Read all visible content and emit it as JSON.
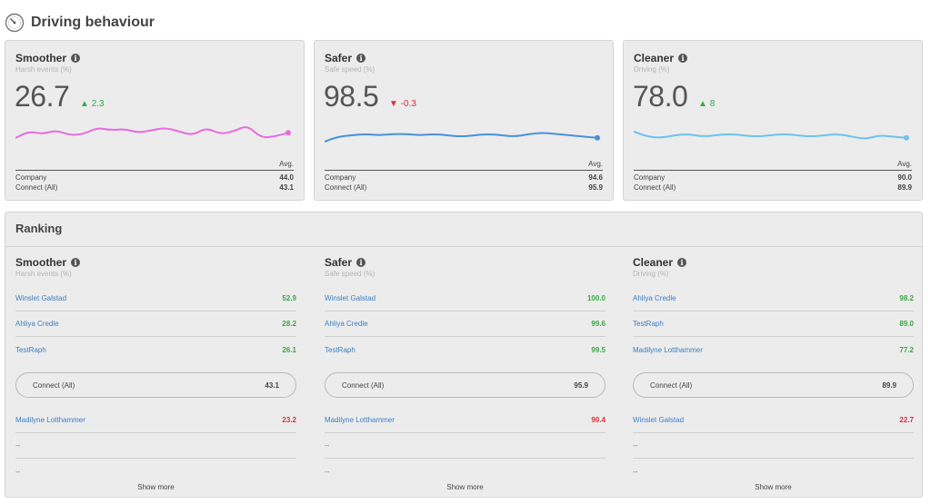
{
  "header": {
    "title": "Driving behaviour",
    "icon": "speedometer-icon"
  },
  "colors": {
    "smoother": "#e86ae0",
    "safer": "#4a90d9",
    "cleaner": "#6cc3ea",
    "good": "#3aa844",
    "bad": "#d9303a",
    "link": "#3b7fc4"
  },
  "cards": [
    {
      "title": "Smoother",
      "subtitle": "Harsh events (%)",
      "value": "26.7",
      "delta": "2.3",
      "delta_dir": "up",
      "delta_arrow": "▲",
      "avg_label": "Avg.",
      "rows": [
        {
          "label": "Company",
          "value": "44.0"
        },
        {
          "label": "Connect (All)",
          "value": "43.1"
        }
      ],
      "trend": [
        0.6,
        0.35,
        0.45,
        0.3,
        0.5,
        0.45,
        0.2,
        0.3,
        0.25,
        0.4,
        0.3,
        0.2,
        0.35,
        0.5,
        0.2,
        0.45,
        0.35,
        0.1,
        0.6,
        0.55,
        0.4
      ]
    },
    {
      "title": "Safer",
      "subtitle": "Safe speed (%)",
      "value": "98.5",
      "delta": "-0.3",
      "delta_dir": "down",
      "delta_arrow": "▼",
      "avg_label": "Avg.",
      "rows": [
        {
          "label": "Company",
          "value": "94.6"
        },
        {
          "label": "Connect (All)",
          "value": "95.9"
        }
      ],
      "trend": [
        0.75,
        0.55,
        0.5,
        0.45,
        0.5,
        0.45,
        0.45,
        0.5,
        0.45,
        0.5,
        0.55,
        0.5,
        0.45,
        0.5,
        0.55,
        0.45,
        0.4,
        0.45,
        0.5,
        0.55,
        0.6
      ]
    },
    {
      "title": "Cleaner",
      "subtitle": "Driving (%)",
      "value": "78.0",
      "delta": "8",
      "delta_dir": "up",
      "delta_arrow": "▲",
      "avg_label": "Avg.",
      "rows": [
        {
          "label": "Company",
          "value": "90.0"
        },
        {
          "label": "Connect (All)",
          "value": "89.9"
        }
      ],
      "trend": [
        0.35,
        0.55,
        0.6,
        0.5,
        0.45,
        0.55,
        0.5,
        0.45,
        0.5,
        0.55,
        0.5,
        0.45,
        0.5,
        0.55,
        0.5,
        0.45,
        0.55,
        0.65,
        0.5,
        0.55,
        0.6
      ]
    }
  ],
  "ranking": {
    "title": "Ranking",
    "show_more": "Show more",
    "columns": [
      {
        "title": "Smoother",
        "subtitle": "Harsh events (%)",
        "top": [
          {
            "name": "Winslet Galstad",
            "score": "52.9"
          },
          {
            "name": "Ahliya Credle",
            "score": "28.2"
          },
          {
            "name": "TestRaph",
            "score": "26.1"
          }
        ],
        "pill": {
          "label": "Connect (All)",
          "value": "43.1"
        },
        "bottom": [
          {
            "name": "Madilyne Lotthammer",
            "score": "23.2"
          },
          {
            "name": "--",
            "score": ""
          },
          {
            "name": "--",
            "score": ""
          }
        ]
      },
      {
        "title": "Safer",
        "subtitle": "Safe speed (%)",
        "top": [
          {
            "name": "Winslet Galstad",
            "score": "100.0"
          },
          {
            "name": "Ahliya Credle",
            "score": "99.6"
          },
          {
            "name": "TestRaph",
            "score": "99.5"
          }
        ],
        "pill": {
          "label": "Connect (All)",
          "value": "95.9"
        },
        "bottom": [
          {
            "name": "Madilyne Lotthammer",
            "score": "90.4"
          },
          {
            "name": "--",
            "score": ""
          },
          {
            "name": "--",
            "score": ""
          }
        ]
      },
      {
        "title": "Cleaner",
        "subtitle": "Driving (%)",
        "top": [
          {
            "name": "Ahliya Credle",
            "score": "98.2"
          },
          {
            "name": "TestRaph",
            "score": "89.0"
          },
          {
            "name": "Madilyne Lotthammer",
            "score": "77.2"
          }
        ],
        "pill": {
          "label": "Connect (All)",
          "value": "89.9"
        },
        "bottom": [
          {
            "name": "Winslet Galstad",
            "score": "22.7"
          },
          {
            "name": "--",
            "score": ""
          },
          {
            "name": "--",
            "score": ""
          }
        ]
      }
    ]
  }
}
